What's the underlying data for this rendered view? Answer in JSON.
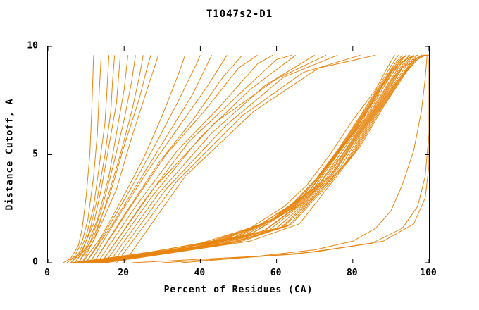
{
  "chart_data": {
    "type": "line",
    "title": "T1047s2-D1",
    "xlabel": "Percent of Residues (CA)",
    "ylabel": "Distance Cutoff, A",
    "xlim": [
      0,
      100
    ],
    "ylim": [
      0,
      10
    ],
    "x_ticks": [
      0,
      20,
      40,
      60,
      80,
      100
    ],
    "y_ticks": [
      0,
      5,
      10
    ],
    "grid": false,
    "legend": "none",
    "line_color": "#e8850e",
    "axis_color": "#000000",
    "background": "#ffffff",
    "curves": [
      [
        [
          4,
          0
        ],
        [
          6,
          0.2
        ],
        [
          8,
          0.8
        ],
        [
          9,
          1.6
        ],
        [
          10,
          3
        ],
        [
          11,
          5
        ],
        [
          11.5,
          7
        ],
        [
          12,
          9.6
        ]
      ],
      [
        [
          5,
          0
        ],
        [
          7,
          0.3
        ],
        [
          9,
          1
        ],
        [
          10.5,
          2
        ],
        [
          12,
          4
        ],
        [
          13,
          6
        ],
        [
          13.5,
          8
        ],
        [
          14,
          9.6
        ]
      ],
      [
        [
          5,
          0
        ],
        [
          8,
          0.4
        ],
        [
          10,
          1.2
        ],
        [
          12,
          2.6
        ],
        [
          13.5,
          4.5
        ],
        [
          15,
          6.5
        ],
        [
          15.5,
          8
        ],
        [
          16,
          9.6
        ]
      ],
      [
        [
          6,
          0
        ],
        [
          9,
          0.5
        ],
        [
          11,
          1.5
        ],
        [
          13,
          3
        ],
        [
          15,
          5
        ],
        [
          16.5,
          7
        ],
        [
          17,
          8.5
        ],
        [
          17.5,
          9.6
        ]
      ],
      [
        [
          6,
          0
        ],
        [
          9,
          0.6
        ],
        [
          12,
          1.8
        ],
        [
          14,
          3.4
        ],
        [
          16,
          5.4
        ],
        [
          18,
          7.4
        ],
        [
          19,
          9.6
        ]
      ],
      [
        [
          7,
          0
        ],
        [
          10,
          0.7
        ],
        [
          13,
          2
        ],
        [
          16,
          4
        ],
        [
          18,
          6
        ],
        [
          20,
          8
        ],
        [
          21,
          9.6
        ]
      ],
      [
        [
          7,
          0
        ],
        [
          11,
          0.9
        ],
        [
          14,
          2.4
        ],
        [
          17,
          4.4
        ],
        [
          20,
          6.6
        ],
        [
          22,
          8.4
        ],
        [
          23,
          9.6
        ]
      ],
      [
        [
          8,
          0
        ],
        [
          12,
          1
        ],
        [
          15,
          2.6
        ],
        [
          19,
          5
        ],
        [
          22,
          7
        ],
        [
          24,
          8.6
        ],
        [
          25,
          9.6
        ]
      ],
      [
        [
          8,
          0
        ],
        [
          12,
          1.2
        ],
        [
          16,
          3
        ],
        [
          20,
          5.4
        ],
        [
          24,
          7.6
        ],
        [
          26,
          9
        ],
        [
          27,
          9.6
        ]
      ],
      [
        [
          9,
          0
        ],
        [
          13,
          1.4
        ],
        [
          18,
          3.4
        ],
        [
          22,
          5.8
        ],
        [
          26,
          8
        ],
        [
          29,
          9.6
        ]
      ],
      [
        [
          9,
          0
        ],
        [
          14,
          1.2
        ],
        [
          19,
          2.8
        ],
        [
          25,
          4.8
        ],
        [
          30,
          6.8
        ],
        [
          34,
          8.6
        ],
        [
          36,
          9.6
        ]
      ],
      [
        [
          10,
          0
        ],
        [
          15,
          1.4
        ],
        [
          21,
          3.2
        ],
        [
          28,
          5.4
        ],
        [
          34,
          7.4
        ],
        [
          39,
          9.2
        ],
        [
          40,
          9.6
        ]
      ],
      [
        [
          10,
          0
        ],
        [
          17,
          1.8
        ],
        [
          24,
          3.8
        ],
        [
          31,
          5.8
        ],
        [
          38,
          7.8
        ],
        [
          43,
          9.6
        ]
      ],
      [
        [
          11,
          0
        ],
        [
          18,
          2
        ],
        [
          26,
          4.2
        ],
        [
          34,
          6.2
        ],
        [
          42,
          8.2
        ],
        [
          47,
          9.6
        ]
      ],
      [
        [
          12,
          0
        ],
        [
          20,
          2.2
        ],
        [
          29,
          4.6
        ],
        [
          38,
          6.6
        ],
        [
          46,
          8.6
        ],
        [
          51,
          9.6
        ]
      ],
      [
        [
          12,
          0
        ],
        [
          21,
          2.4
        ],
        [
          31,
          5
        ],
        [
          41,
          7
        ],
        [
          50,
          9
        ],
        [
          55,
          9.6
        ]
      ],
      [
        [
          13,
          0
        ],
        [
          23,
          2.6
        ],
        [
          34,
          5.2
        ],
        [
          45,
          7.2
        ],
        [
          55,
          9.2
        ],
        [
          59,
          9.6
        ]
      ],
      [
        [
          14,
          0
        ],
        [
          25,
          2.8
        ],
        [
          37,
          5.6
        ],
        [
          49,
          7.6
        ],
        [
          60,
          9.4
        ],
        [
          64,
          9.6
        ]
      ],
      [
        [
          15,
          0
        ],
        [
          27,
          3
        ],
        [
          40,
          5.8
        ],
        [
          53,
          8
        ],
        [
          65,
          9.6
        ]
      ],
      [
        [
          16,
          0
        ],
        [
          29,
          3.2
        ],
        [
          43,
          6
        ],
        [
          57,
          8.2
        ],
        [
          70,
          9.6
        ]
      ],
      [
        [
          17,
          0
        ],
        [
          31,
          3.4
        ],
        [
          47,
          6.4
        ],
        [
          62,
          8.6
        ],
        [
          76,
          9.6
        ]
      ],
      [
        [
          18,
          0
        ],
        [
          34,
          3.8
        ],
        [
          51,
          6.8
        ],
        [
          67,
          8.8
        ],
        [
          82,
          9.6
        ]
      ],
      [
        [
          14,
          0
        ],
        [
          28,
          3.5
        ],
        [
          44,
          6.5
        ],
        [
          60,
          8.5
        ],
        [
          73,
          9.6
        ]
      ],
      [
        [
          20,
          0
        ],
        [
          36,
          4
        ],
        [
          54,
          7
        ],
        [
          71,
          9
        ],
        [
          86,
          9.6
        ]
      ],
      [
        [
          6,
          0
        ],
        [
          24,
          0.4
        ],
        [
          40,
          0.9
        ],
        [
          53,
          1.6
        ],
        [
          62,
          2.6
        ],
        [
          68,
          3.6
        ],
        [
          74,
          5
        ],
        [
          80,
          6.6
        ],
        [
          86,
          8
        ],
        [
          89,
          9
        ],
        [
          91,
          9.6
        ]
      ],
      [
        [
          6,
          0
        ],
        [
          26,
          0.4
        ],
        [
          42,
          0.9
        ],
        [
          55,
          1.7
        ],
        [
          64,
          2.7
        ],
        [
          70,
          3.8
        ],
        [
          76,
          5.2
        ],
        [
          82,
          6.8
        ],
        [
          87,
          8.2
        ],
        [
          90,
          9.1
        ],
        [
          92,
          9.6
        ]
      ],
      [
        [
          7,
          0
        ],
        [
          27,
          0.5
        ],
        [
          43,
          1
        ],
        [
          56,
          1.8
        ],
        [
          65,
          2.8
        ],
        [
          71,
          4
        ],
        [
          77,
          5.4
        ],
        [
          83,
          7
        ],
        [
          88,
          8.4
        ],
        [
          91,
          9.2
        ],
        [
          93,
          9.6
        ]
      ],
      [
        [
          7,
          0
        ],
        [
          29,
          0.5
        ],
        [
          45,
          1
        ],
        [
          58,
          1.9
        ],
        [
          66,
          3
        ],
        [
          72,
          4.2
        ],
        [
          78,
          5.6
        ],
        [
          84,
          7.2
        ],
        [
          89,
          8.6
        ],
        [
          92,
          9.3
        ],
        [
          94,
          9.6
        ]
      ],
      [
        [
          8,
          0
        ],
        [
          30,
          0.5
        ],
        [
          46,
          1.1
        ],
        [
          59,
          2
        ],
        [
          67,
          3.1
        ],
        [
          73,
          4.4
        ],
        [
          79,
          5.8
        ],
        [
          85,
          7.4
        ],
        [
          90,
          8.8
        ],
        [
          93,
          9.4
        ],
        [
          94,
          9.6
        ]
      ],
      [
        [
          8,
          0
        ],
        [
          32,
          0.6
        ],
        [
          48,
          1.1
        ],
        [
          60,
          2.1
        ],
        [
          68,
          3.2
        ],
        [
          74,
          4.6
        ],
        [
          80,
          6
        ],
        [
          86,
          7.6
        ],
        [
          90,
          8.9
        ],
        [
          93,
          9.5
        ],
        [
          95,
          9.6
        ]
      ],
      [
        [
          9,
          0
        ],
        [
          33,
          0.6
        ],
        [
          49,
          1.2
        ],
        [
          61,
          2.2
        ],
        [
          69,
          3.4
        ],
        [
          75,
          4.8
        ],
        [
          81,
          6.2
        ],
        [
          86,
          7.8
        ],
        [
          91,
          9
        ],
        [
          94,
          9.6
        ]
      ],
      [
        [
          9,
          0
        ],
        [
          35,
          0.6
        ],
        [
          50,
          1.2
        ],
        [
          62,
          2.3
        ],
        [
          70,
          3.5
        ],
        [
          76,
          5
        ],
        [
          82,
          6.4
        ],
        [
          87,
          8
        ],
        [
          92,
          9.1
        ],
        [
          95,
          9.6
        ]
      ],
      [
        [
          10,
          0
        ],
        [
          36,
          0.7
        ],
        [
          52,
          1.3
        ],
        [
          63,
          2.4
        ],
        [
          71,
          3.6
        ],
        [
          77,
          5.1
        ],
        [
          83,
          6.6
        ],
        [
          88,
          8.1
        ],
        [
          92,
          9.2
        ],
        [
          96,
          9.6
        ]
      ],
      [
        [
          10,
          0
        ],
        [
          38,
          0.7
        ],
        [
          53,
          1.3
        ],
        [
          64,
          2.5
        ],
        [
          72,
          3.8
        ],
        [
          78,
          5.2
        ],
        [
          84,
          6.8
        ],
        [
          89,
          8.2
        ],
        [
          93,
          9.3
        ],
        [
          96,
          9.6
        ]
      ],
      [
        [
          11,
          0
        ],
        [
          39,
          0.7
        ],
        [
          54,
          1.4
        ],
        [
          65,
          2.6
        ],
        [
          73,
          3.9
        ],
        [
          79,
          5.4
        ],
        [
          85,
          7
        ],
        [
          90,
          8.4
        ],
        [
          94,
          9.4
        ],
        [
          97,
          9.6
        ]
      ],
      [
        [
          11,
          0
        ],
        [
          41,
          0.8
        ],
        [
          56,
          1.4
        ],
        [
          66,
          2.7
        ],
        [
          74,
          4
        ],
        [
          80,
          5.6
        ],
        [
          86,
          7.2
        ],
        [
          91,
          8.6
        ],
        [
          95,
          9.5
        ],
        [
          97,
          9.6
        ]
      ],
      [
        [
          12,
          0
        ],
        [
          42,
          0.8
        ],
        [
          57,
          1.5
        ],
        [
          67,
          2.8
        ],
        [
          75,
          4.2
        ],
        [
          81,
          5.8
        ],
        [
          87,
          7.4
        ],
        [
          92,
          8.8
        ],
        [
          96,
          9.6
        ]
      ],
      [
        [
          12,
          0
        ],
        [
          44,
          0.8
        ],
        [
          58,
          1.5
        ],
        [
          68,
          2.9
        ],
        [
          76,
          4.4
        ],
        [
          82,
          6
        ],
        [
          88,
          7.6
        ],
        [
          93,
          9
        ],
        [
          97,
          9.6
        ]
      ],
      [
        [
          13,
          0
        ],
        [
          45,
          0.9
        ],
        [
          60,
          1.6
        ],
        [
          69,
          3
        ],
        [
          77,
          4.5
        ],
        [
          83,
          6.2
        ],
        [
          89,
          7.8
        ],
        [
          94,
          9.1
        ],
        [
          98,
          9.6
        ]
      ],
      [
        [
          13,
          0
        ],
        [
          47,
          0.9
        ],
        [
          61,
          1.6
        ],
        [
          70,
          3.1
        ],
        [
          78,
          4.6
        ],
        [
          84,
          6.4
        ],
        [
          90,
          8
        ],
        [
          95,
          9.2
        ],
        [
          98,
          9.6
        ]
      ],
      [
        [
          14,
          0
        ],
        [
          48,
          0.9
        ],
        [
          62,
          1.7
        ],
        [
          71,
          3.2
        ],
        [
          79,
          4.8
        ],
        [
          85,
          6.6
        ],
        [
          91,
          8.2
        ],
        [
          96,
          9.3
        ],
        [
          99,
          9.6
        ]
      ],
      [
        [
          14,
          0
        ],
        [
          50,
          1
        ],
        [
          63,
          1.7
        ],
        [
          72,
          3.4
        ],
        [
          80,
          5
        ],
        [
          86,
          6.8
        ],
        [
          92,
          8.4
        ],
        [
          96,
          9.4
        ],
        [
          99,
          9.6
        ]
      ],
      [
        [
          15,
          0
        ],
        [
          51,
          1
        ],
        [
          64,
          1.8
        ],
        [
          73,
          3.5
        ],
        [
          81,
          5.2
        ],
        [
          87,
          7
        ],
        [
          93,
          8.6
        ],
        [
          97,
          9.5
        ],
        [
          100,
          9.6
        ]
      ],
      [
        [
          15,
          0
        ],
        [
          53,
          1
        ],
        [
          66,
          1.8
        ],
        [
          74,
          3.6
        ],
        [
          82,
          5.4
        ],
        [
          88,
          7.2
        ],
        [
          94,
          8.8
        ],
        [
          98,
          9.6
        ],
        [
          100,
          9.6
        ]
      ],
      [
        [
          22,
          0
        ],
        [
          55,
          0.3
        ],
        [
          70,
          0.6
        ],
        [
          80,
          1
        ],
        [
          86,
          1.6
        ],
        [
          90,
          2.4
        ],
        [
          93,
          3.6
        ],
        [
          96,
          5.2
        ],
        [
          98,
          7
        ],
        [
          99,
          8.5
        ],
        [
          99.5,
          9.6
        ]
      ],
      [
        [
          30,
          0
        ],
        [
          65,
          0.4
        ],
        [
          85,
          0.9
        ],
        [
          93,
          1.6
        ],
        [
          97,
          2.6
        ],
        [
          99,
          4
        ],
        [
          100,
          6
        ],
        [
          100,
          9.5
        ]
      ],
      [
        [
          35,
          0
        ],
        [
          70,
          0.5
        ],
        [
          88,
          1
        ],
        [
          96,
          1.8
        ],
        [
          99,
          3
        ],
        [
          100,
          4.5
        ],
        [
          100,
          7
        ],
        [
          100,
          9.4
        ]
      ]
    ]
  }
}
